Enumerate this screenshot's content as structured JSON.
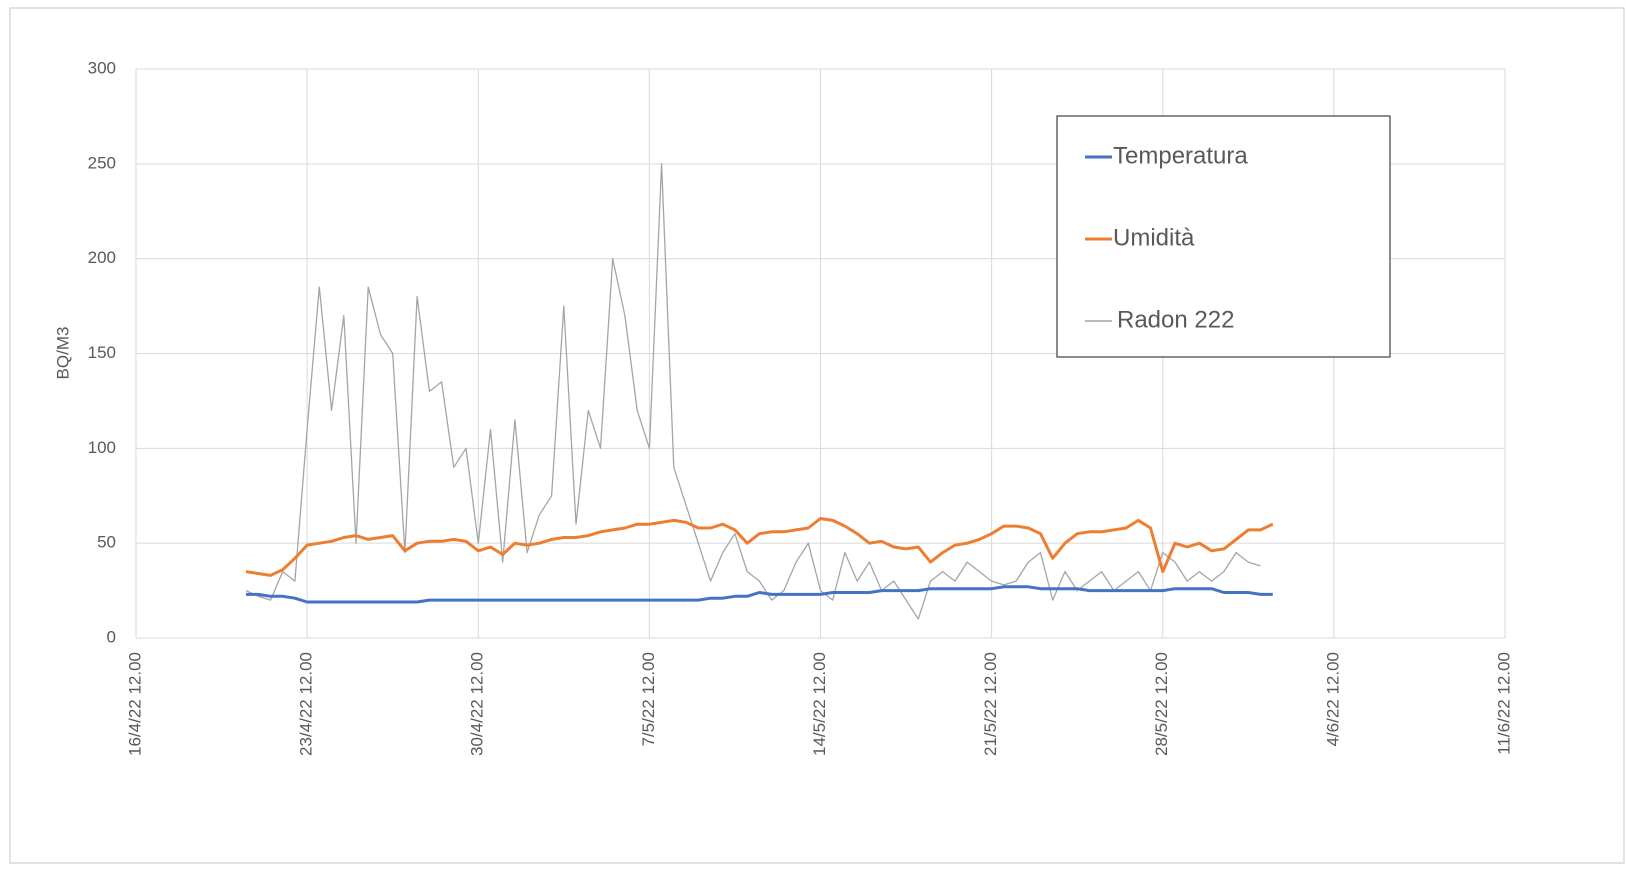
{
  "chart_data": {
    "type": "line",
    "y_label": "BQ/M3",
    "x": [
      44672,
      44672.5,
      44673,
      44673.5,
      44674,
      44674.5,
      44675,
      44675.5,
      44676,
      44676.5,
      44677,
      44677.5,
      44678,
      44678.5,
      44679,
      44679.5,
      44680,
      44680.5,
      44681,
      44681.5,
      44682,
      44682.5,
      44683,
      44683.5,
      44684,
      44684.5,
      44685,
      44685.5,
      44686,
      44686.5,
      44687,
      44687.5,
      44688,
      44688.5,
      44689,
      44689.5,
      44690,
      44690.5,
      44691,
      44691.5,
      44692,
      44692.5,
      44693,
      44693.5,
      44694,
      44694.5,
      44695,
      44695.5,
      44696,
      44696.5,
      44697,
      44697.5,
      44698,
      44698.5,
      44699,
      44699.5,
      44700,
      44700.5,
      44701,
      44701.5,
      44702,
      44702.5,
      44703,
      44703.5,
      44704,
      44704.5,
      44705,
      44705.5,
      44706,
      44706.5,
      44707,
      44707.5,
      44708,
      44708.5,
      44709,
      44709.5,
      44710,
      44710.5,
      44711,
      44711.5,
      44712,
      44712.5,
      44713,
      44713.5,
      44714
    ],
    "series": [
      {
        "name": "Temperatura",
        "color": "#4472c4",
        "width": 3,
        "values": [
          23,
          23,
          22,
          22,
          21,
          19,
          19,
          19,
          19,
          19,
          19,
          19,
          19,
          19,
          19,
          20,
          20,
          20,
          20,
          20,
          20,
          20,
          20,
          20,
          20,
          20,
          20,
          20,
          20,
          20,
          20,
          20,
          20,
          20,
          20,
          20,
          20,
          20,
          21,
          21,
          22,
          22,
          24,
          23,
          23,
          23,
          23,
          23,
          24,
          24,
          24,
          24,
          25,
          25,
          25,
          25,
          26,
          26,
          26,
          26,
          26,
          26,
          27,
          27,
          27,
          26,
          26,
          26,
          26,
          25,
          25,
          25,
          25,
          25,
          25,
          25,
          26,
          26,
          26,
          26,
          24,
          24,
          24,
          23,
          23
        ]
      },
      {
        "name": "Umidità",
        "color": "#ed7d31",
        "width": 3,
        "values": [
          35,
          34,
          33,
          36,
          42,
          49,
          50,
          51,
          53,
          54,
          52,
          53,
          54,
          46,
          50,
          51,
          51,
          52,
          51,
          46,
          48,
          44,
          50,
          49,
          50,
          52,
          53,
          53,
          54,
          56,
          57,
          58,
          60,
          60,
          61,
          62,
          61,
          58,
          58,
          60,
          57,
          50,
          55,
          56,
          56,
          57,
          58,
          63,
          62,
          59,
          55,
          50,
          51,
          48,
          47,
          48,
          40,
          45,
          49,
          50,
          52,
          55,
          59,
          59,
          58,
          55,
          42,
          50,
          55,
          56,
          56,
          57,
          58,
          62,
          58,
          35,
          50,
          48,
          50,
          46,
          47,
          52,
          57,
          57,
          60
        ]
      },
      {
        "name": "Radon 222",
        "color": "#a5a5a5",
        "width": 1.3,
        "values": [
          25,
          22,
          20,
          35,
          30,
          110,
          185,
          120,
          170,
          50,
          185,
          160,
          150,
          45,
          180,
          130,
          135,
          90,
          100,
          50,
          110,
          40,
          115,
          45,
          65,
          75,
          175,
          60,
          120,
          100,
          200,
          170,
          120,
          100,
          250,
          90,
          70,
          50,
          30,
          45,
          55,
          35,
          30,
          20,
          25,
          40,
          50,
          25,
          20,
          45,
          30,
          40,
          25,
          30,
          20,
          10,
          30,
          35,
          30,
          40,
          35,
          30,
          28,
          30,
          40,
          45,
          20,
          35,
          25,
          30,
          35,
          25,
          30,
          35,
          25,
          45,
          40,
          30,
          35,
          30,
          35,
          45,
          40,
          38,
          null
        ]
      }
    ],
    "xlim": [
      44667.5,
      44723.5
    ],
    "xticks": [
      {
        "value": 44667.5,
        "label": "16/4/22 12.00"
      },
      {
        "value": 44674.5,
        "label": "23/4/22 12.00"
      },
      {
        "value": 44681.5,
        "label": "30/4/22 12.00"
      },
      {
        "value": 44688.5,
        "label": "7/5/22 12.00"
      },
      {
        "value": 44695.5,
        "label": "14/5/22 12.00"
      },
      {
        "value": 44702.5,
        "label": "21/5/22 12.00"
      },
      {
        "value": 44709.5,
        "label": "28/5/22 12.00"
      },
      {
        "value": 44716.5,
        "label": "4/6/22 12.00"
      },
      {
        "value": 44723.5,
        "label": "11/6/22 12.00"
      }
    ],
    "ylim": [
      0,
      300
    ],
    "yticks": [
      0,
      50,
      100,
      150,
      200,
      250,
      300
    ],
    "grid": true
  }
}
